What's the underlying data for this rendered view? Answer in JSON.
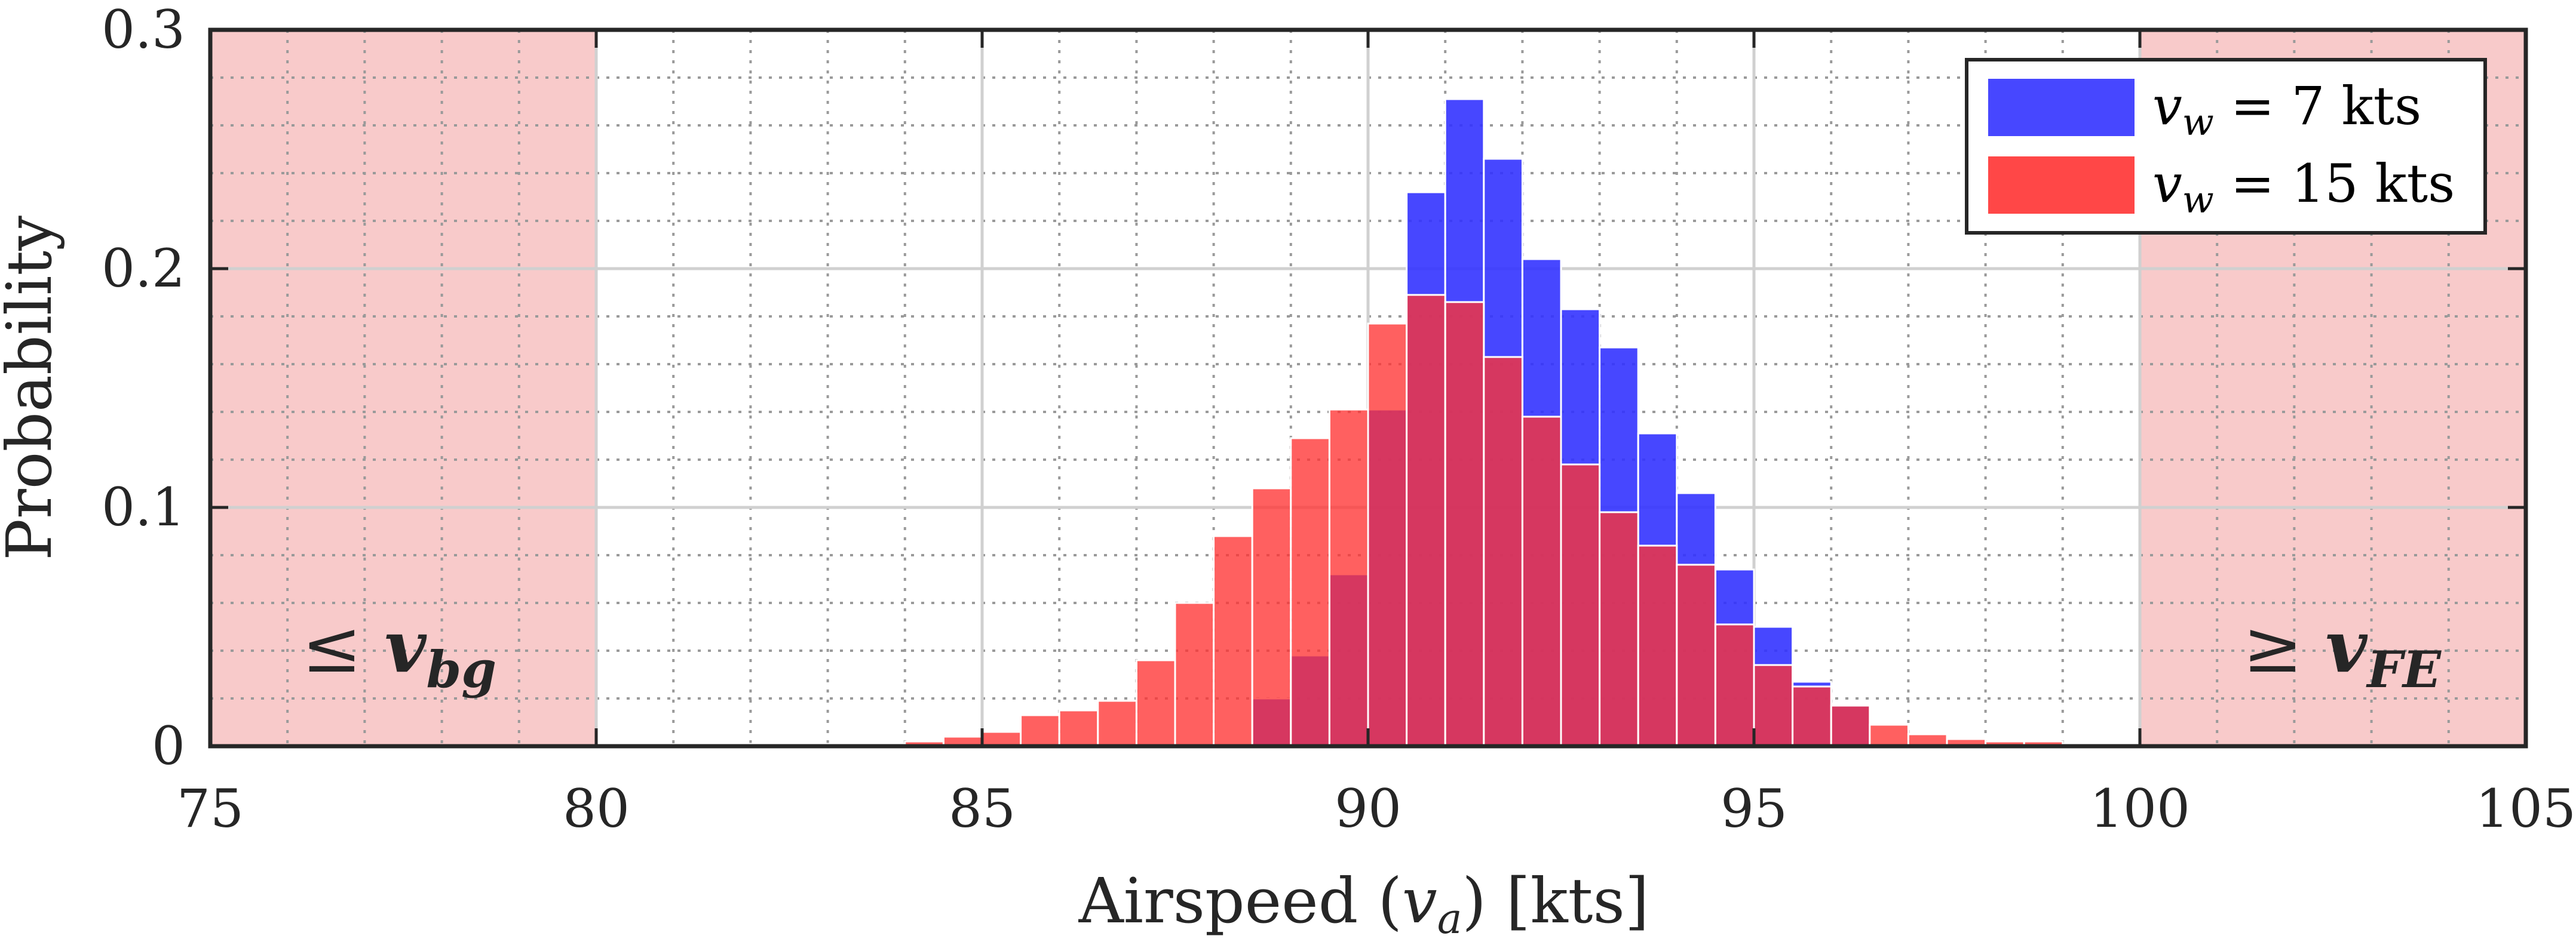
{
  "chart_data": {
    "type": "bar",
    "xlabel": {
      "main": "Airspeed (",
      "var": "v",
      "sub": "a",
      "end": ") [kts]"
    },
    "ylabel": "Probability",
    "xlim": [
      75,
      105
    ],
    "ylim": [
      0,
      0.3
    ],
    "xticks": [
      "75",
      "80",
      "85",
      "90",
      "95",
      "100",
      "105"
    ],
    "yticks": [
      "0",
      "0.1",
      "0.2",
      "0.3"
    ],
    "grid": true,
    "minor_grid": true,
    "bin_width": 0.5,
    "legend_position": "top-right",
    "shaded_regions": [
      {
        "from": 75,
        "to": 80,
        "label_prefix": "≤",
        "label_var": "v",
        "label_sub": "bg",
        "color": "#f4a6a6"
      },
      {
        "from": 100,
        "to": 105,
        "label_prefix": "≥",
        "label_var": "v",
        "label_sub": "FE",
        "color": "#f4a6a6"
      }
    ],
    "series": [
      {
        "name": "v_w = 7 kts",
        "legend_var": "v",
        "legend_sub": "w",
        "legend_rest": " = 7 kts",
        "color": "#3333ff",
        "bin_starts": [
          88.5,
          89.0,
          89.5,
          90.0,
          90.5,
          91.0,
          91.5,
          92.0,
          92.5,
          93.0,
          93.5,
          94.0,
          94.5,
          95.0,
          95.5,
          96.0
        ],
        "values": [
          0.02,
          0.038,
          0.072,
          0.141,
          0.232,
          0.271,
          0.246,
          0.204,
          0.183,
          0.167,
          0.131,
          0.106,
          0.074,
          0.05,
          0.027,
          0.017
        ]
      },
      {
        "name": "v_w = 15 kts",
        "legend_var": "v",
        "legend_sub": "w",
        "legend_rest": " = 15 kts",
        "color": "#ff3333",
        "bin_starts": [
          81.5,
          82.0,
          82.5,
          83.0,
          83.5,
          84.0,
          84.5,
          85.0,
          85.5,
          86.0,
          86.5,
          87.0,
          87.5,
          88.0,
          88.5,
          89.0,
          89.5,
          90.0,
          90.5,
          91.0,
          91.5,
          92.0,
          92.5,
          93.0,
          93.5,
          94.0,
          94.5,
          95.0,
          95.5,
          96.0,
          96.5,
          97.0,
          97.5,
          98.0,
          98.5,
          99.0
        ],
        "values": [
          0.001,
          0.001,
          0.001,
          0.001,
          0.001,
          0.002,
          0.004,
          0.006,
          0.013,
          0.015,
          0.019,
          0.036,
          0.06,
          0.088,
          0.108,
          0.129,
          0.141,
          0.177,
          0.189,
          0.186,
          0.163,
          0.138,
          0.118,
          0.098,
          0.084,
          0.076,
          0.051,
          0.034,
          0.025,
          0.017,
          0.009,
          0.005,
          0.003,
          0.002,
          0.002,
          0.001
        ]
      }
    ]
  }
}
